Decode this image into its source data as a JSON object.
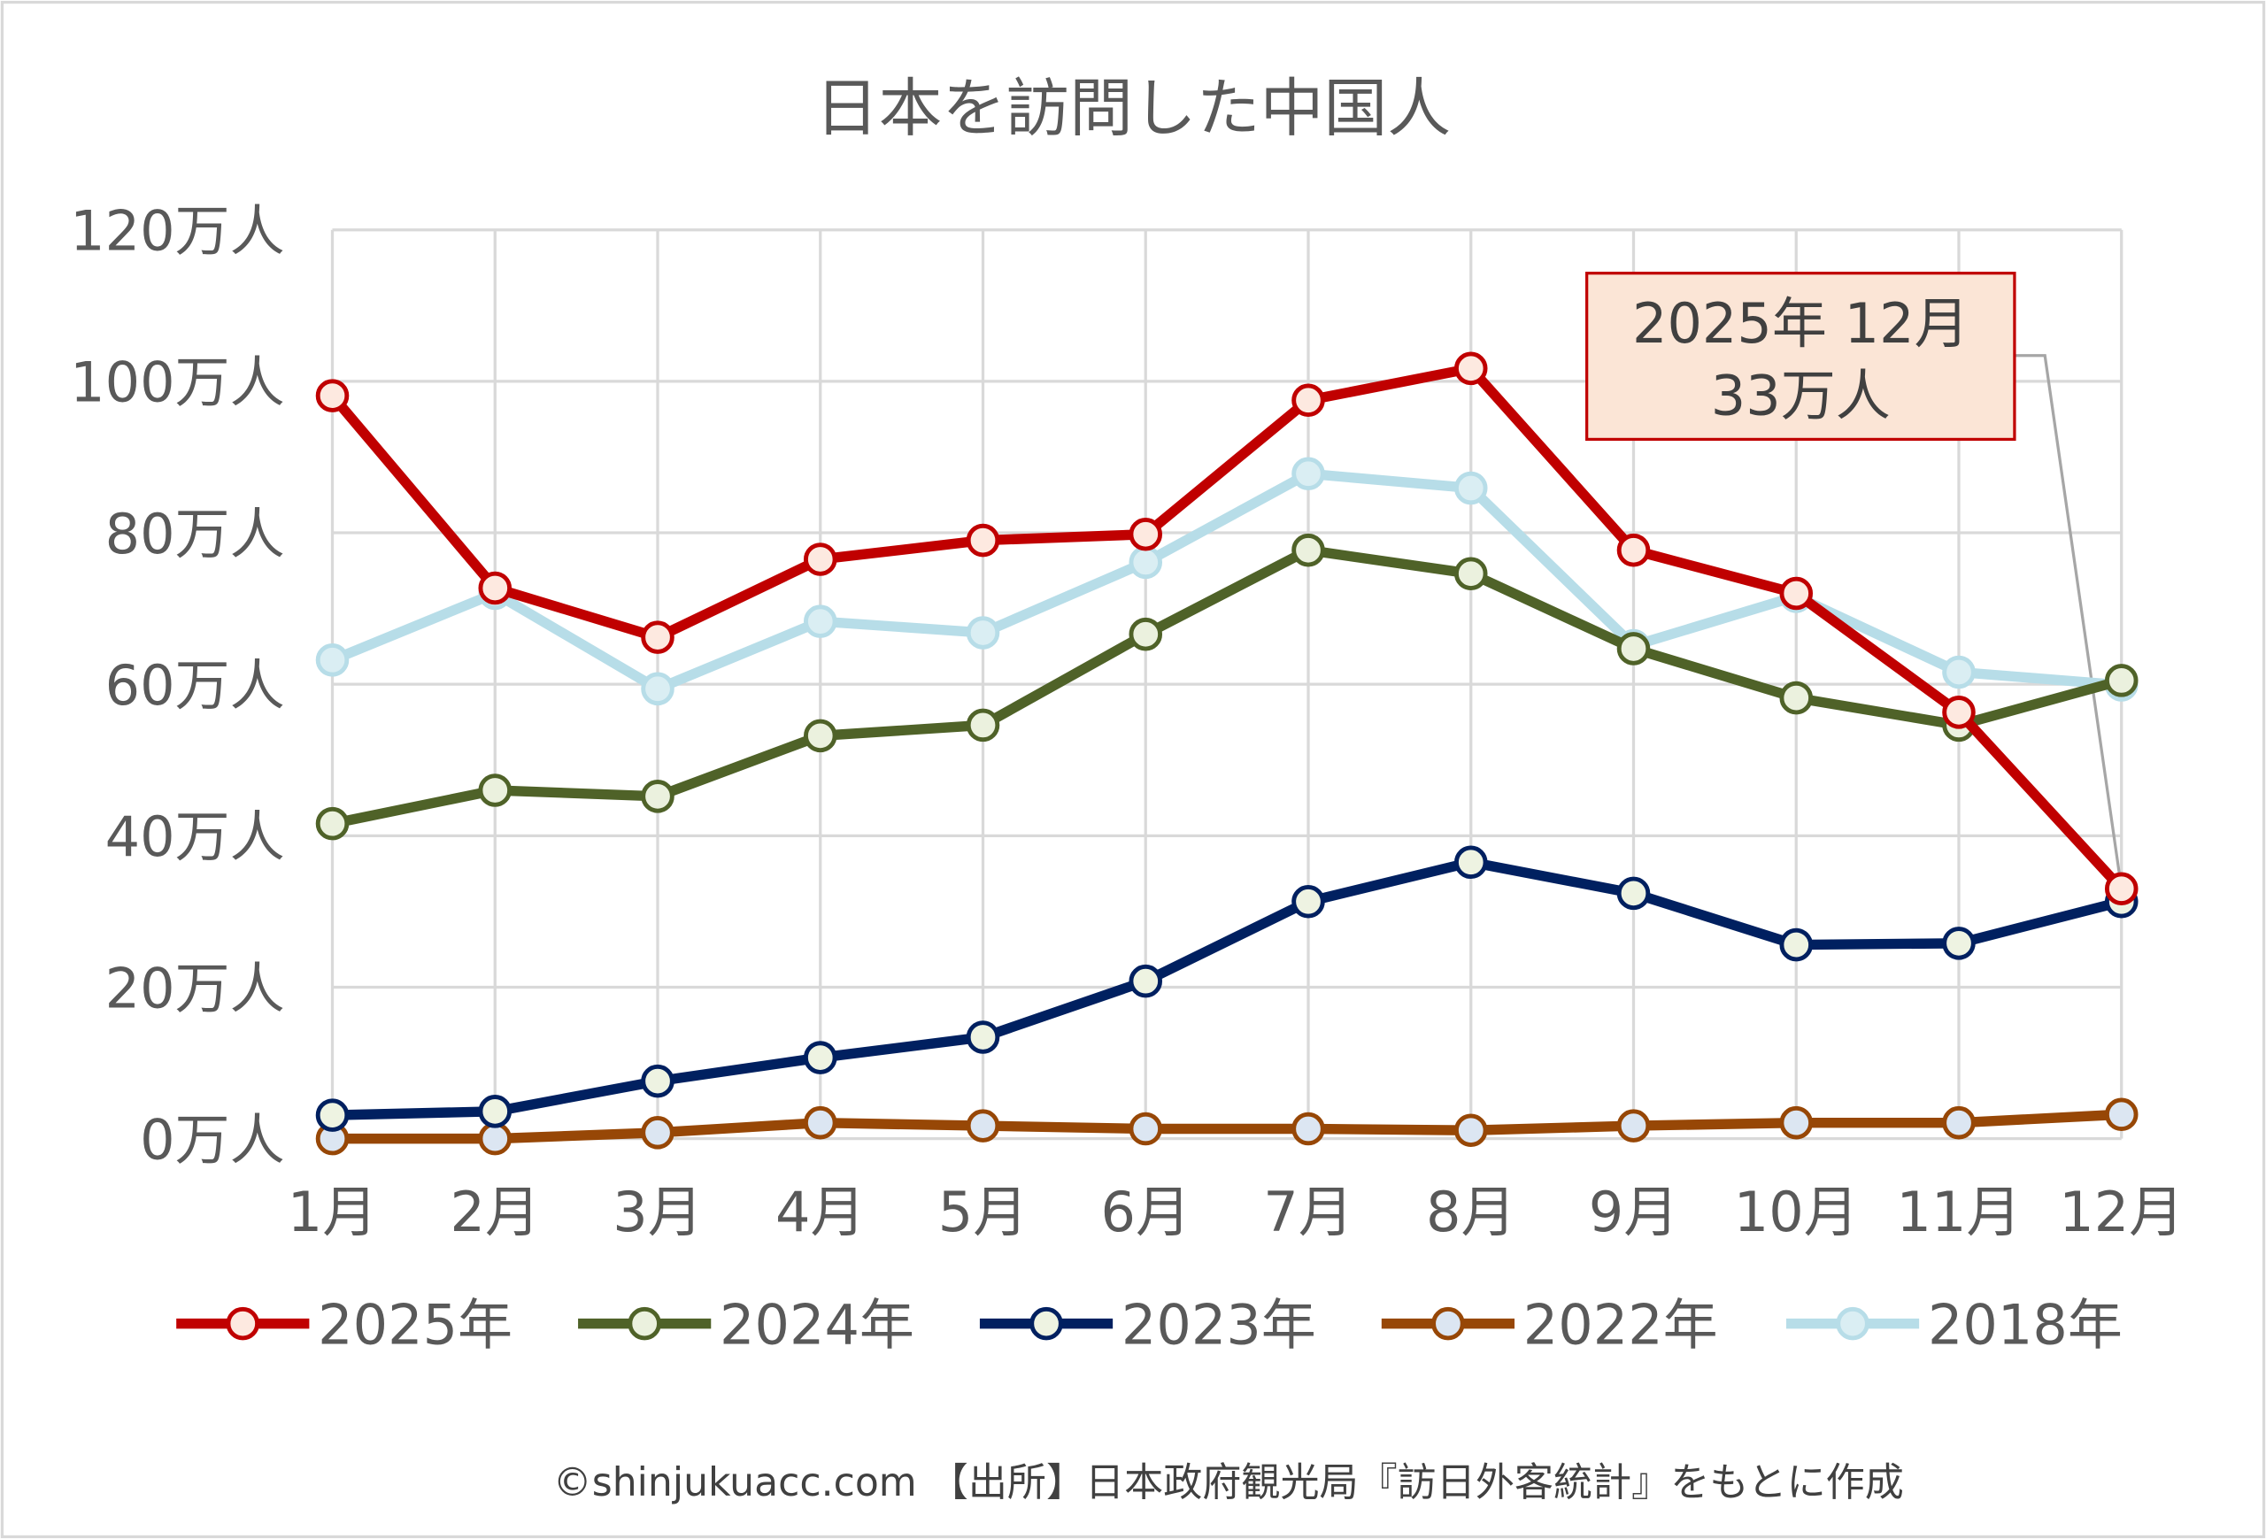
{
  "chart_data": {
    "type": "line",
    "title": "日本を訪問した中国人",
    "xlabel": "",
    "ylabel": "",
    "categories": [
      "1月",
      "2月",
      "3月",
      "4月",
      "5月",
      "6月",
      "7月",
      "8月",
      "9月",
      "10月",
      "11月",
      "12月"
    ],
    "y_ticks": [
      "0万人",
      "20万人",
      "40万人",
      "60万人",
      "80万人",
      "100万人",
      "120万人"
    ],
    "ylim": [
      0,
      120
    ],
    "y_unit": "万人",
    "grid": true,
    "legend_position": "bottom",
    "series": [
      {
        "name": "2025年",
        "color": "#C00000",
        "marker_fill": "#FDE9E0",
        "values": [
          98.1,
          72.7,
          66.2,
          76.5,
          79.0,
          79.8,
          97.5,
          101.7,
          77.7,
          72.0,
          56.3,
          33.0
        ]
      },
      {
        "name": "2024年",
        "color": "#4F6228",
        "marker_fill": "#EBF1DE",
        "values": [
          41.6,
          46.0,
          45.2,
          53.2,
          54.6,
          66.6,
          77.7,
          74.6,
          64.7,
          58.2,
          54.6,
          60.5
        ]
      },
      {
        "name": "2023年",
        "color": "#002060",
        "marker_fill": "#EEF3E2",
        "values": [
          3.1,
          3.6,
          7.6,
          10.7,
          13.4,
          20.8,
          31.3,
          36.5,
          32.4,
          25.6,
          25.8,
          31.3
        ]
      },
      {
        "name": "2022年",
        "color": "#974706",
        "marker_fill": "#DCE6F2",
        "values": [
          0.0,
          0.0,
          0.8,
          2.1,
          1.7,
          1.3,
          1.3,
          1.1,
          1.7,
          2.1,
          2.1,
          3.2
        ]
      },
      {
        "name": "2018年",
        "color": "#B7DDE8",
        "marker_fill": "#DAEEF3",
        "values": [
          63.2,
          72.0,
          59.4,
          68.3,
          66.8,
          76.1,
          87.8,
          85.9,
          65.1,
          71.6,
          61.6,
          59.9
        ]
      }
    ],
    "annotation": {
      "line1": "2025年 12月",
      "line2": "33万人",
      "series": "2025年",
      "category": "12月",
      "value": 33
    }
  },
  "footer": "©shinjukuacc.com 【出所】日本政府観光局『訪日外客統計』をもとに作成"
}
